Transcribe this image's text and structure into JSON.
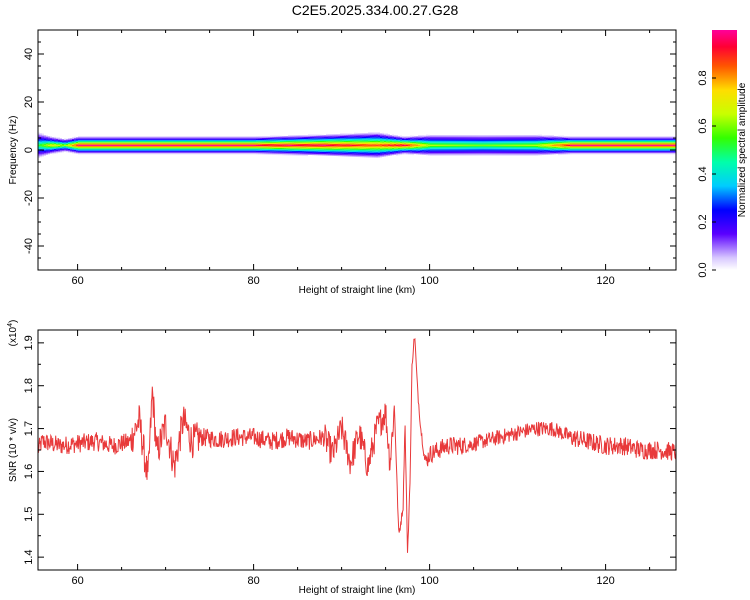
{
  "title": "C2E5.2025.334.00.27.G28",
  "chart_data": [
    {
      "type": "heatmap",
      "title": "",
      "xlabel": "Height of straight line (km)",
      "ylabel": "Frequency (Hz)",
      "xlim": [
        55.5,
        128
      ],
      "ylim": [
        -50,
        50
      ],
      "x_ticks": [
        "60",
        "80",
        "100",
        "120"
      ],
      "y_ticks": [
        "40",
        "20",
        "0",
        "-20",
        "-40"
      ],
      "band_center_hz": 2,
      "band_profile": [
        {
          "x": 55.5,
          "half_width": 6,
          "peak": 0.5
        },
        {
          "x": 57,
          "half_width": 4,
          "peak": 0.7
        },
        {
          "x": 58.5,
          "half_width": 3,
          "peak": 0.6
        },
        {
          "x": 60,
          "half_width": 4,
          "peak": 0.95
        },
        {
          "x": 70,
          "half_width": 4,
          "peak": 0.95
        },
        {
          "x": 80,
          "half_width": 4,
          "peak": 0.95
        },
        {
          "x": 88,
          "half_width": 5,
          "peak": 0.95
        },
        {
          "x": 94,
          "half_width": 6,
          "peak": 0.85
        },
        {
          "x": 97,
          "half_width": 4,
          "peak": 0.95
        },
        {
          "x": 100,
          "half_width": 5,
          "peak": 0.6
        },
        {
          "x": 106,
          "half_width": 5,
          "peak": 0.55
        },
        {
          "x": 112,
          "half_width": 5,
          "peak": 0.6
        },
        {
          "x": 116,
          "half_width": 4,
          "peak": 0.95
        },
        {
          "x": 128,
          "half_width": 4,
          "peak": 0.95
        }
      ],
      "colorbar": {
        "label": "Normalized spectral amplitude",
        "range": [
          0,
          1
        ],
        "ticks": [
          "0.0",
          "0.2",
          "0.4",
          "0.6",
          "0.8"
        ]
      }
    },
    {
      "type": "line",
      "title": "",
      "xlabel": "Height of straight line (km)",
      "ylabel": "SNR (10 * v/v)",
      "y_multiplier": "(x10",
      "y_multiplier_exp": "4",
      "xlim": [
        55.5,
        128
      ],
      "ylim": [
        1.37,
        1.93
      ],
      "x_ticks": [
        "60",
        "80",
        "100",
        "120"
      ],
      "y_ticks": [
        "1.9",
        "1.8",
        "1.7",
        "1.6",
        "1.5",
        "1.4"
      ],
      "color": "#e8393a",
      "series": [
        {
          "x": [
            55.5,
            56,
            58,
            60,
            62,
            64,
            66,
            67,
            68,
            68.5,
            69,
            70,
            71,
            72,
            73,
            74,
            76,
            78,
            80,
            82,
            84,
            86,
            88,
            89,
            90,
            91,
            92,
            93,
            94,
            95,
            95.5,
            96,
            96.5,
            97,
            97.2,
            97.5,
            97.8,
            98,
            98.3,
            98.6,
            99,
            99.5,
            100,
            102,
            104,
            106,
            108,
            110,
            112,
            114,
            116,
            118,
            120,
            122,
            124,
            126,
            128
          ],
          "values": [
            1.65,
            1.67,
            1.66,
            1.665,
            1.67,
            1.66,
            1.67,
            1.72,
            1.58,
            1.79,
            1.64,
            1.71,
            1.61,
            1.72,
            1.67,
            1.68,
            1.675,
            1.68,
            1.68,
            1.67,
            1.68,
            1.67,
            1.68,
            1.64,
            1.7,
            1.62,
            1.69,
            1.61,
            1.7,
            1.74,
            1.62,
            1.75,
            1.45,
            1.52,
            1.72,
            1.4,
            1.6,
            1.85,
            1.92,
            1.8,
            1.7,
            1.62,
            1.64,
            1.66,
            1.66,
            1.67,
            1.68,
            1.69,
            1.7,
            1.7,
            1.68,
            1.67,
            1.66,
            1.66,
            1.65,
            1.65,
            1.645
          ]
        }
      ]
    }
  ]
}
